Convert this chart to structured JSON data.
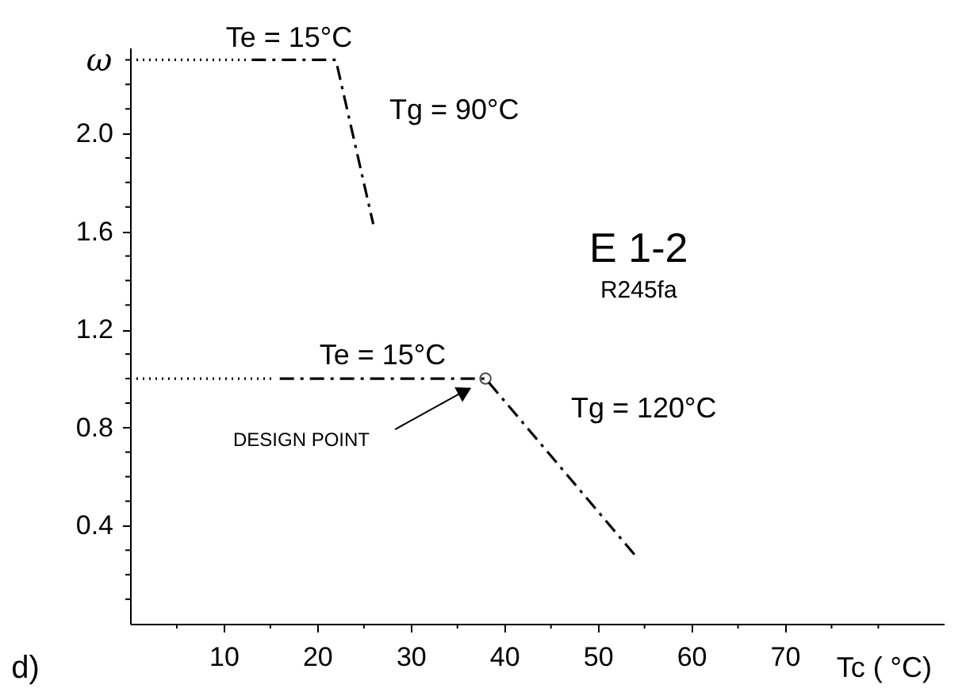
{
  "chart_data": {
    "type": "line",
    "xlabel": "Tc ( °C)",
    "ylabel": "ω",
    "xlim": [
      0,
      87
    ],
    "ylim": [
      0,
      2.35
    ],
    "xticks": [
      {
        "value": 5,
        "label": null
      },
      10,
      {
        "value": 15,
        "label": null
      },
      20,
      {
        "value": 25,
        "label": null
      },
      30,
      {
        "value": 35,
        "label": null
      },
      40,
      {
        "value": 45,
        "label": null
      },
      50,
      {
        "value": 55,
        "label": null
      },
      60,
      {
        "value": 65,
        "label": null
      },
      70,
      {
        "value": 75,
        "label": null
      },
      {
        "value": 80,
        "label": null
      }
    ],
    "yticks": [
      {
        "value": 0.1,
        "label": null
      },
      {
        "value": 0.2,
        "label": null
      },
      {
        "value": 0.3,
        "label": null
      },
      0.4,
      {
        "value": 0.5,
        "label": null
      },
      {
        "value": 0.6,
        "label": null
      },
      {
        "value": 0.7,
        "label": null
      },
      0.8,
      {
        "value": 0.9,
        "label": null
      },
      {
        "value": 1.0,
        "label": null
      },
      {
        "value": 1.1,
        "label": null
      },
      1.2,
      {
        "value": 1.3,
        "label": null
      },
      {
        "value": 1.4,
        "label": null
      },
      {
        "value": 1.5,
        "label": null
      },
      1.6,
      {
        "value": 1.7,
        "label": null
      },
      {
        "value": 1.8,
        "label": null
      },
      {
        "value": 1.9,
        "label": null
      },
      {
        "value": 2.0,
        "label": "2.0"
      },
      {
        "value": 2.1,
        "label": null
      },
      {
        "value": 2.2,
        "label": null
      },
      {
        "value": 2.3,
        "label": null
      }
    ],
    "grid": false,
    "marker": "none",
    "series": [
      {
        "color": "#000000",
        "line_style": "dotted",
        "x": [
          0,
          12.4
        ],
        "values": [
          2.3,
          2.3
        ]
      },
      {
        "color": "#000000",
        "line_style": "dashed",
        "x": [
          13,
          22,
          26
        ],
        "values": [
          2.3,
          2.3,
          1.63
        ]
      },
      {
        "color": "#000000",
        "line_style": "dotted",
        "x": [
          0,
          15.4
        ],
        "values": [
          1.0,
          1.0
        ]
      },
      {
        "color": "#000000",
        "line_style": "dashed",
        "x": [
          16,
          38,
          54.2
        ],
        "values": [
          1.0,
          1.0,
          0.27
        ]
      },
      {
        "type": "scatter",
        "marker": "circle",
        "color": "#000000",
        "x": [
          38
        ],
        "values": [
          1.0
        ]
      }
    ],
    "annotations": [
      {
        "text": "Te = 15°C",
        "x": 17,
        "y": 2.3
      },
      {
        "text": "Tg = 90°C",
        "x": 24,
        "y": 1.95
      },
      {
        "text": "Te = 15°C",
        "x": 27,
        "y": 1.0
      },
      "Tg = 120°C",
      "DESIGN POINT",
      "E 1-2",
      "R245fa",
      "d)"
    ]
  }
}
